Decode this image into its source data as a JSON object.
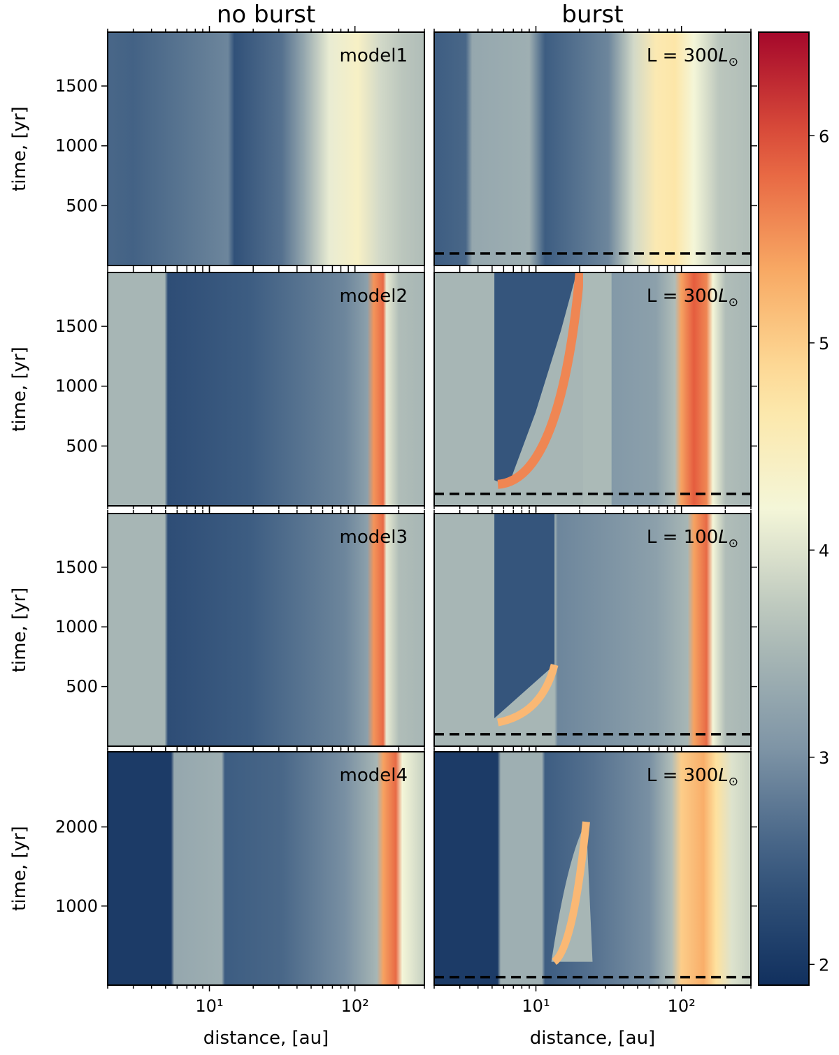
{
  "column_titles": [
    "no burst",
    "burst"
  ],
  "xlabel": "distance, [au]",
  "ylabel": "time, [yr]",
  "x_tick_labels": [
    "10¹",
    "10²"
  ],
  "colorbar": {
    "ticks": [
      2,
      3,
      4,
      5,
      6
    ],
    "tick_labels": [
      "2",
      "3",
      "4",
      "5",
      "6"
    ],
    "range": [
      1.9,
      6.5
    ],
    "colormap": [
      "#11305e",
      "#3a5a80",
      "#7f95a6",
      "#b2bfb9",
      "#f4f6d8",
      "#fee4a1",
      "#f8a964",
      "#e4593c",
      "#a5082b"
    ]
  },
  "chart_data": [
    {
      "type": "heatmap",
      "row": 1,
      "column": "no burst",
      "annotation": "model1",
      "xlim_au": [
        2,
        300
      ],
      "ylim_yr": [
        0,
        1950
      ],
      "yticks": [
        500,
        1000,
        1500
      ]
    },
    {
      "type": "heatmap",
      "row": 1,
      "column": "burst",
      "annotation_prefix": "L = 300",
      "annotation_suffix": "L",
      "annotation_sub": "⊙",
      "xlim_au": [
        2,
        300
      ],
      "ylim_yr": [
        0,
        1950
      ],
      "yticks": [
        500,
        1000,
        1500
      ],
      "burst_line_yr": 100
    },
    {
      "type": "heatmap",
      "row": 2,
      "column": "no burst",
      "annotation": "model2",
      "xlim_au": [
        2,
        300
      ],
      "ylim_yr": [
        0,
        1950
      ],
      "yticks": [
        500,
        1000,
        1500
      ]
    },
    {
      "type": "heatmap",
      "row": 2,
      "column": "burst",
      "annotation_prefix": "L = 300",
      "annotation_suffix": "L",
      "annotation_sub": "⊙",
      "xlim_au": [
        2,
        300
      ],
      "ylim_yr": [
        0,
        1950
      ],
      "yticks": [
        500,
        1000,
        1500
      ],
      "burst_line_yr": 100
    },
    {
      "type": "heatmap",
      "row": 3,
      "column": "no burst",
      "annotation": "model3",
      "xlim_au": [
        2,
        300
      ],
      "ylim_yr": [
        0,
        1950
      ],
      "yticks": [
        500,
        1000,
        1500
      ]
    },
    {
      "type": "heatmap",
      "row": 3,
      "column": "burst",
      "annotation_prefix": "L = 100",
      "annotation_suffix": "L",
      "annotation_sub": "⊙",
      "xlim_au": [
        2,
        300
      ],
      "ylim_yr": [
        0,
        1950
      ],
      "yticks": [
        500,
        1000,
        1500
      ],
      "burst_line_yr": 100
    },
    {
      "type": "heatmap",
      "row": 4,
      "column": "no burst",
      "annotation": "model4",
      "xlim_au": [
        2,
        300
      ],
      "ylim_yr": [
        0,
        2950
      ],
      "yticks": [
        1000,
        2000
      ]
    },
    {
      "type": "heatmap",
      "row": 4,
      "column": "burst",
      "annotation_prefix": "L = 300",
      "annotation_suffix": "L",
      "annotation_sub": "⊙",
      "xlim_au": [
        2,
        300
      ],
      "ylim_yr": [
        0,
        2950
      ],
      "yticks": [
        1000,
        2000
      ],
      "burst_line_yr": 100
    }
  ]
}
